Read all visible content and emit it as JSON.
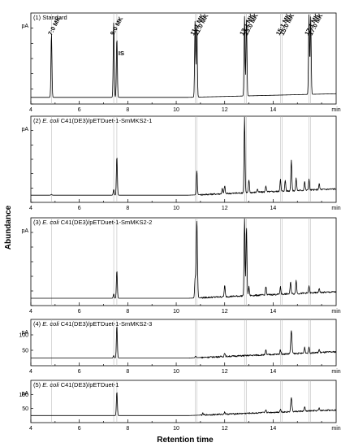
{
  "chart_data": {
    "type": "line",
    "xlabel": "Retention time",
    "ylabel": "Abundance",
    "x_unit": "min",
    "y_unit": "pA",
    "xlim": [
      4,
      16.6
    ],
    "x_ticks": [
      "4",
      "6",
      "8",
      "10",
      "12",
      "14"
    ],
    "reference_lines_x": [
      4.85,
      7.42,
      7.55,
      10.78,
      10.85,
      12.82,
      12.9,
      14.3,
      14.38,
      15.48,
      15.55
    ],
    "panels": [
      {
        "title": "(1) Standard",
        "title_italic": "",
        "title_rest": "",
        "ylim": [
          0,
          300
        ],
        "y_ticks": [
          0,
          50,
          100,
          150,
          200,
          250
        ],
        "show_tick_labels": false,
        "baseline": 22,
        "drift": 12,
        "peaks": [
          {
            "x": 4.85,
            "h": 210,
            "w": 0.02
          },
          {
            "x": 7.42,
            "h": 250,
            "w": 0.02
          },
          {
            "x": 7.55,
            "h": 195,
            "w": 0.02
          },
          {
            "x": 10.78,
            "h": 255,
            "w": 0.02
          },
          {
            "x": 10.85,
            "h": 240,
            "w": 0.02
          },
          {
            "x": 12.82,
            "h": 262,
            "w": 0.02
          },
          {
            "x": 12.9,
            "h": 255,
            "w": 0.02
          },
          {
            "x": 15.48,
            "h": 262,
            "w": 0.02
          },
          {
            "x": 15.55,
            "h": 255,
            "w": 0.02
          }
        ],
        "labels": [
          {
            "text": "7:0 MK",
            "x": 4.85
          },
          {
            "text": "9:0 MK",
            "x": 7.42
          },
          {
            "text": "IS",
            "x": 7.55
          },
          {
            "text": "11:1 MK",
            "x": 10.72
          },
          {
            "text": "11:0 MK",
            "x": 10.88
          },
          {
            "text": "13:1 MK",
            "x": 12.76
          },
          {
            "text": "13:0 MK",
            "x": 12.93
          },
          {
            "text": "15:1 MK",
            "x": 14.26
          },
          {
            "text": "15:0 MK",
            "x": 14.42
          },
          {
            "text": "17:1 MK",
            "x": 15.44
          },
          {
            "text": "17:0 MK",
            "x": 15.6
          }
        ]
      },
      {
        "title": "(2)",
        "title_italic": "E. coli",
        "title_rest": "C41(DE3)/pETDuet-1-SmMKS2-1",
        "ylim": [
          0,
          300
        ],
        "y_ticks": [
          0,
          50,
          100,
          150,
          200,
          250
        ],
        "show_tick_labels": false,
        "baseline": 25,
        "drift": 22,
        "peaks": [
          {
            "x": 4.85,
            "h": 3,
            "w": 0.02
          },
          {
            "x": 7.42,
            "h": 20,
            "w": 0.02
          },
          {
            "x": 7.55,
            "h": 135,
            "w": 0.02
          },
          {
            "x": 10.85,
            "h": 85,
            "w": 0.02
          },
          {
            "x": 11.9,
            "h": 18,
            "w": 0.02
          },
          {
            "x": 12.0,
            "h": 28,
            "w": 0.02
          },
          {
            "x": 12.82,
            "h": 265,
            "w": 0.02
          },
          {
            "x": 13.0,
            "h": 45,
            "w": 0.02
          },
          {
            "x": 13.35,
            "h": 12,
            "w": 0.02
          },
          {
            "x": 13.7,
            "h": 22,
            "w": 0.02
          },
          {
            "x": 14.3,
            "h": 42,
            "w": 0.02
          },
          {
            "x": 14.5,
            "h": 38,
            "w": 0.02
          },
          {
            "x": 14.75,
            "h": 108,
            "w": 0.02
          },
          {
            "x": 14.95,
            "h": 42,
            "w": 0.02
          },
          {
            "x": 15.3,
            "h": 30,
            "w": 0.02
          },
          {
            "x": 15.48,
            "h": 38,
            "w": 0.02
          },
          {
            "x": 15.9,
            "h": 20,
            "w": 0.02
          }
        ],
        "labels": []
      },
      {
        "title": "(3)",
        "title_italic": "E. coli",
        "title_rest": "C41(DE3)/pETDuet-1-SmMKS2-2",
        "ylim": [
          0,
          300
        ],
        "y_ticks": [
          0,
          50,
          100,
          150,
          200,
          250
        ],
        "show_tick_labels": false,
        "baseline": 25,
        "drift": 22,
        "peaks": [
          {
            "x": 7.42,
            "h": 15,
            "w": 0.02
          },
          {
            "x": 7.55,
            "h": 95,
            "w": 0.02
          },
          {
            "x": 10.78,
            "h": 65,
            "w": 0.02
          },
          {
            "x": 10.85,
            "h": 265,
            "w": 0.025
          },
          {
            "x": 12.0,
            "h": 38,
            "w": 0.02
          },
          {
            "x": 12.82,
            "h": 265,
            "w": 0.02
          },
          {
            "x": 12.9,
            "h": 235,
            "w": 0.02
          },
          {
            "x": 13.0,
            "h": 30,
            "w": 0.02
          },
          {
            "x": 13.7,
            "h": 30,
            "w": 0.02
          },
          {
            "x": 14.3,
            "h": 25,
            "w": 0.02
          },
          {
            "x": 14.72,
            "h": 40,
            "w": 0.02
          },
          {
            "x": 14.95,
            "h": 45,
            "w": 0.02
          },
          {
            "x": 15.48,
            "h": 25,
            "w": 0.02
          },
          {
            "x": 15.9,
            "h": 15,
            "w": 0.02
          }
        ],
        "labels": []
      },
      {
        "title": "(4)",
        "title_italic": "E. coli",
        "title_rest": "C41(DE3)/pETDuet-1-SmMKS2-3",
        "ylim": [
          0,
          150
        ],
        "y_ticks": [
          50,
          100
        ],
        "show_tick_labels": true,
        "baseline": 25,
        "drift": 20,
        "peaks": [
          {
            "x": 7.42,
            "h": 8,
            "w": 0.02
          },
          {
            "x": 7.55,
            "h": 105,
            "w": 0.02
          },
          {
            "x": 10.8,
            "h": 5,
            "w": 0.02
          },
          {
            "x": 12.0,
            "h": 12,
            "w": 0.02
          },
          {
            "x": 13.7,
            "h": 15,
            "w": 0.02
          },
          {
            "x": 14.3,
            "h": 15,
            "w": 0.02
          },
          {
            "x": 14.75,
            "h": 75,
            "w": 0.025
          },
          {
            "x": 15.3,
            "h": 20,
            "w": 0.02
          },
          {
            "x": 15.48,
            "h": 20,
            "w": 0.02
          },
          {
            "x": 15.9,
            "h": 10,
            "w": 0.02
          }
        ],
        "labels": []
      },
      {
        "title": "(5)",
        "title_italic": "E. coli",
        "title_rest": "C41(DE3)/pETDuet-1",
        "ylim": [
          0,
          150
        ],
        "y_ticks": [
          50,
          100
        ],
        "show_tick_labels": true,
        "baseline": 25,
        "drift": 20,
        "peaks": [
          {
            "x": 7.55,
            "h": 85,
            "w": 0.02
          },
          {
            "x": 11.1,
            "h": 6,
            "w": 0.02
          },
          {
            "x": 12.0,
            "h": 8,
            "w": 0.02
          },
          {
            "x": 13.7,
            "h": 10,
            "w": 0.02
          },
          {
            "x": 14.3,
            "h": 10,
            "w": 0.02
          },
          {
            "x": 14.75,
            "h": 50,
            "w": 0.025
          },
          {
            "x": 15.3,
            "h": 15,
            "w": 0.02
          },
          {
            "x": 15.9,
            "h": 8,
            "w": 0.02
          }
        ],
        "labels": []
      }
    ]
  }
}
